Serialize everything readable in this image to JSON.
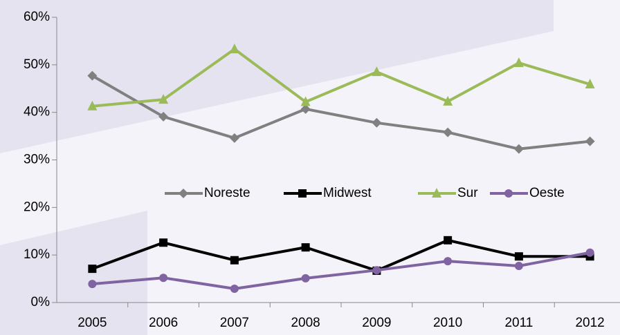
{
  "chart_data": {
    "type": "line",
    "categories": [
      "2005",
      "2006",
      "2007",
      "2008",
      "2009",
      "2010",
      "2011",
      "2012"
    ],
    "series": [
      {
        "name": "Noreste",
        "color": "#808080",
        "marker": "diamond",
        "values": [
          47.7,
          39.1,
          34.6,
          40.7,
          37.8,
          35.8,
          32.3,
          33.9
        ]
      },
      {
        "name": "Midwest",
        "color": "#000000",
        "marker": "square",
        "values": [
          7.1,
          12.6,
          8.9,
          11.6,
          6.7,
          13.1,
          9.7,
          9.7
        ]
      },
      {
        "name": "Sur",
        "color": "#9bbb59",
        "marker": "triangle",
        "values": [
          41.3,
          42.7,
          53.3,
          42.2,
          48.5,
          42.3,
          50.4,
          45.9
        ]
      },
      {
        "name": "Oeste",
        "color": "#8064a2",
        "marker": "circle",
        "values": [
          3.9,
          5.2,
          2.9,
          5.1,
          6.8,
          8.7,
          7.7,
          10.5
        ]
      }
    ],
    "ylim": [
      0,
      60
    ],
    "yticks": [
      {
        "value": 0,
        "label": "0%"
      },
      {
        "value": 10,
        "label": "10%"
      },
      {
        "value": 20,
        "label": "20%"
      },
      {
        "value": 30,
        "label": "30%"
      },
      {
        "value": 40,
        "label": "40%"
      },
      {
        "value": 50,
        "label": "50%"
      },
      {
        "value": 60,
        "label": "60%"
      }
    ],
    "grid": false,
    "legend": "center"
  }
}
